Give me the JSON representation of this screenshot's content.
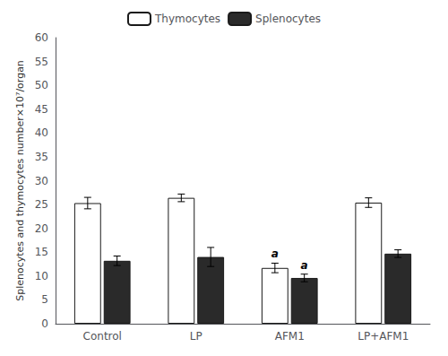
{
  "chart_data": {
    "type": "bar",
    "categories": [
      "Control",
      "LP",
      "AFM1",
      "LP+AFM1"
    ],
    "series": [
      {
        "name": "Thymocytes",
        "color": "#ffffff",
        "values": [
          25.3,
          26.4,
          11.7,
          25.4
        ],
        "errors": [
          1.2,
          0.8,
          1.0,
          1.0
        ]
      },
      {
        "name": "Splenocytes",
        "color": "#2a2a2a",
        "values": [
          13.2,
          14.0,
          9.6,
          14.7
        ],
        "errors": [
          1.0,
          2.0,
          0.8,
          0.8
        ]
      }
    ],
    "ylabel": "Splenocytes and thymocytes number×10⁷/organ",
    "ylim": [
      0,
      60
    ],
    "yticks": [
      0,
      5,
      10,
      15,
      20,
      25,
      30,
      35,
      40,
      45,
      50,
      55,
      60
    ],
    "grid": false,
    "legend": "top",
    "annotations": [
      {
        "category": "AFM1",
        "series": "Thymocytes",
        "text": "a"
      },
      {
        "category": "AFM1",
        "series": "Splenocytes",
        "text": "a"
      }
    ]
  }
}
